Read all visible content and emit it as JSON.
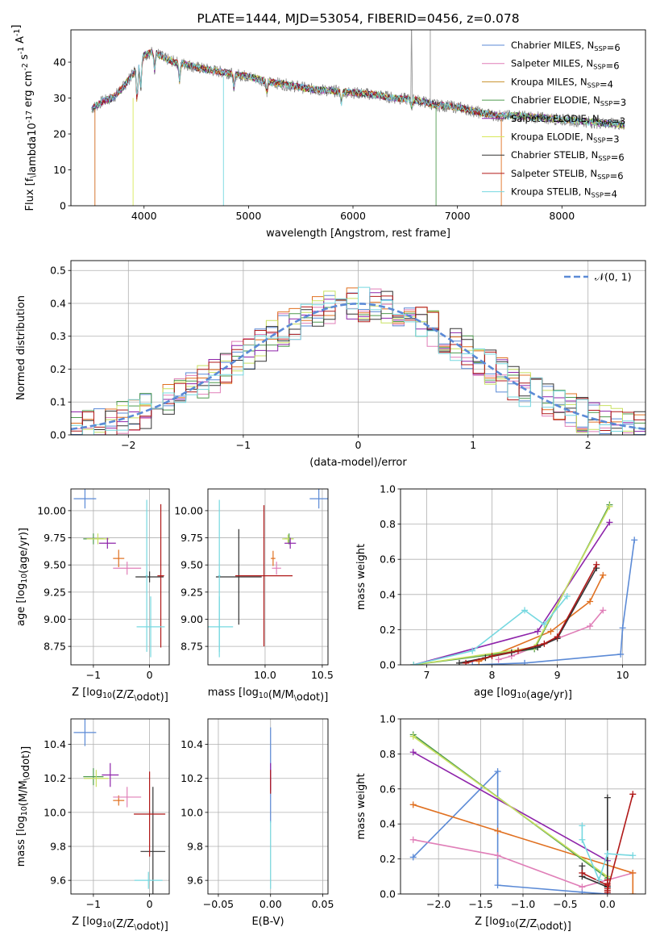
{
  "chart_data": [
    {
      "id": "spectrum",
      "type": "line",
      "title": "PLATE=1444, MJD=53054, FIBERID=0456, z=0.078",
      "xlabel": "wavelength [Angstrom, rest frame]",
      "ylabel": "Flux [f$_\\lambda$10$^{-17}$ erg cm$^{-2}$ s$^{-1}$ A$^{-1}$]",
      "xlim": [
        3300,
        8800
      ],
      "ylim": [
        0,
        49
      ],
      "xticks": [
        4000,
        5000,
        6000,
        7000,
        8000
      ],
      "yticks": [
        0,
        10,
        20,
        30,
        40
      ],
      "grid": false,
      "legend_position": "top-right",
      "observed_spectrum_color": "#808080",
      "continuum": {
        "x": [
          3500,
          3600,
          3700,
          3800,
          3900,
          4000,
          4100,
          4200,
          4300,
          4400,
          4500,
          4600,
          4800,
          5000,
          5200,
          5400,
          5600,
          5800,
          6000,
          6200,
          6400,
          6600,
          6800,
          7000,
          7200,
          7400,
          7600,
          7800,
          8000,
          8200,
          8400,
          8600
        ],
        "y": [
          27,
          29,
          30,
          33,
          37,
          42,
          43,
          41,
          40,
          39.5,
          38.5,
          38,
          37,
          36,
          34.5,
          33.5,
          32.5,
          32,
          31.5,
          31,
          30,
          29.5,
          28,
          27.5,
          26,
          25,
          25,
          24.5,
          24,
          23.5,
          23,
          22.5
        ]
      },
      "series": [
        {
          "label": "Chabrier MILES, N$_{SSP}$=6",
          "color": "#5b8ad6"
        },
        {
          "label": "Salpeter MILES, N$_{SSP}$=6",
          "color": "#e07fb8"
        },
        {
          "label": "Kroupa MILES, N$_{SSP}$=4",
          "color": "#c8902a"
        },
        {
          "label": "Chabrier ELODIE, N$_{SSP}$=3",
          "color": "#4f9a4f"
        },
        {
          "label": "Salpeter ELODIE, N$_{SSP}$=3",
          "color": "#8e24aa"
        },
        {
          "label": "Kroupa ELODIE, N$_{SSP}$=3",
          "color": "#d8e85a"
        },
        {
          "label": "Chabrier STELIB, N$_{SSP}$=6",
          "color": "#333333"
        },
        {
          "label": "Salpeter STELIB, N$_{SSP}$=6",
          "color": "#b01818"
        },
        {
          "label": "Kroupa STELIB, N$_{SSP}$=4",
          "color": "#76d8e0"
        }
      ]
    },
    {
      "id": "residuals",
      "type": "line",
      "xlabel": "(data-model)/error",
      "ylabel": "Normed distribution",
      "xlim": [
        -2.5,
        2.5
      ],
      "ylim": [
        0,
        0.53
      ],
      "xticks": [
        -2,
        -1,
        0,
        1,
        2
      ],
      "yticks": [
        0.0,
        0.1,
        0.2,
        0.3,
        0.4,
        0.5
      ],
      "grid": true,
      "legend_position": "top-right",
      "gaussian": {
        "label": "𝒩(0, 1)",
        "color": "#5b8ad6",
        "mean": 0,
        "sigma": 1
      },
      "histogram_colors": [
        "#5b8ad6",
        "#e07fb8",
        "#e07020",
        "#4f9a4f",
        "#8e24aa",
        "#c8e060",
        "#333333",
        "#b01818",
        "#76d8e0"
      ]
    },
    {
      "id": "age_vs_Z",
      "type": "scatter",
      "xlabel": "Z [log$_{10}$(Z/Z$_\\odot$)]",
      "ylabel": "age  [log$_{10}$(age/yr)]",
      "xlim": [
        -1.4,
        0.35
      ],
      "ylim": [
        8.58,
        10.2
      ],
      "xticks": [
        -1,
        0
      ],
      "yticks": [
        8.75,
        9.0,
        9.25,
        9.5,
        9.75,
        10.0
      ],
      "grid": true,
      "points": [
        {
          "x": -1.15,
          "y": 10.11,
          "xerr": 0.2,
          "yerr": 0.09,
          "color": "#5b8ad6"
        },
        {
          "x": -1.0,
          "y": 9.74,
          "xerr": 0.18,
          "yerr": 0.05,
          "color": "#4f9a4f"
        },
        {
          "x": -0.92,
          "y": 9.74,
          "xerr": 0.2,
          "yerr": 0.05,
          "color": "#c8e060"
        },
        {
          "x": -0.75,
          "y": 9.7,
          "xerr": 0.15,
          "yerr": 0.05,
          "color": "#8e24aa"
        },
        {
          "x": -0.55,
          "y": 9.56,
          "xerr": 0.1,
          "yerr": 0.08,
          "color": "#e07020"
        },
        {
          "x": -0.4,
          "y": 9.47,
          "xerr": 0.25,
          "yerr": 0.06,
          "color": "#e07fb8"
        },
        {
          "x": 0.0,
          "y": 9.39,
          "xerr": 0.25,
          "yerr": 0.05,
          "color": "#333333"
        },
        {
          "x": 0.2,
          "y": 9.4,
          "xerr": 0.06,
          "yerr": 0.66,
          "color": "#b01818"
        },
        {
          "x": 0.02,
          "y": 8.93,
          "xerr": 0.25,
          "yerr": 0.28,
          "color": "#76d8e0"
        },
        {
          "x": -0.05,
          "y": 9.4,
          "xerr": 0.02,
          "yerr": 0.7,
          "color": "#76d8e0"
        }
      ]
    },
    {
      "id": "age_vs_mass",
      "type": "scatter",
      "xlabel": "mass [log$_{10}$(M/M$_\\odot$)]",
      "ylabel": "",
      "xlim": [
        9.5,
        10.55
      ],
      "ylim": [
        8.58,
        10.2
      ],
      "xticks": [
        10.0,
        10.5
      ],
      "yticks": [
        8.75,
        9.0,
        9.25,
        9.5,
        9.75,
        10.0
      ],
      "grid": true,
      "points": [
        {
          "x": 10.47,
          "y": 10.11,
          "xerr": 0.08,
          "yerr": 0.09,
          "color": "#5b8ad6"
        },
        {
          "x": 10.21,
          "y": 9.74,
          "xerr": 0.04,
          "yerr": 0.05,
          "color": "#4f9a4f"
        },
        {
          "x": 10.2,
          "y": 9.74,
          "xerr": 0.05,
          "yerr": 0.04,
          "color": "#c8e060"
        },
        {
          "x": 10.22,
          "y": 9.7,
          "xerr": 0.05,
          "yerr": 0.05,
          "color": "#8e24aa"
        },
        {
          "x": 10.07,
          "y": 9.56,
          "xerr": 0.02,
          "yerr": 0.07,
          "color": "#e07020"
        },
        {
          "x": 10.1,
          "y": 9.47,
          "xerr": 0.04,
          "yerr": 0.06,
          "color": "#e07fb8"
        },
        {
          "x": 9.77,
          "y": 9.39,
          "xerr": 0.2,
          "yerr": 0.44,
          "color": "#333333"
        },
        {
          "x": 9.99,
          "y": 9.4,
          "xerr": 0.25,
          "yerr": 0.65,
          "color": "#b01818"
        },
        {
          "x": 9.6,
          "y": 8.93,
          "xerr": 0.12,
          "yerr": 0.28,
          "color": "#76d8e0"
        },
        {
          "x": 9.6,
          "y": 9.4,
          "xerr": 0.01,
          "yerr": 0.7,
          "color": "#76d8e0"
        }
      ]
    },
    {
      "id": "weight_vs_age",
      "type": "line",
      "xlabel": "age  [log$_{10}$(age/yr)]",
      "ylabel": "mass weight",
      "xlim": [
        6.6,
        10.35
      ],
      "ylim": [
        0,
        1.0
      ],
      "xticks": [
        7,
        8,
        9,
        10
      ],
      "yticks": [
        0.0,
        0.2,
        0.4,
        0.6,
        0.8,
        1.0
      ],
      "grid": true,
      "series": [
        {
          "color": "#5b8ad6",
          "x": [
            7.7,
            8.5,
            9.97,
            10.0,
            10.18
          ],
          "y": [
            0.0,
            0.01,
            0.06,
            0.21,
            0.71
          ]
        },
        {
          "color": "#e07fb8",
          "x": [
            8.1,
            8.3,
            9.5,
            9.7
          ],
          "y": [
            0.03,
            0.05,
            0.22,
            0.31
          ]
        },
        {
          "color": "#e07020",
          "x": [
            7.8,
            8.9,
            9.5,
            9.7
          ],
          "y": [
            0.02,
            0.19,
            0.36,
            0.51
          ]
        },
        {
          "color": "#4f9a4f",
          "x": [
            6.8,
            8.65,
            9.8
          ],
          "y": [
            0.0,
            0.09,
            0.91
          ]
        },
        {
          "color": "#8e24aa",
          "x": [
            6.8,
            8.7,
            9.8
          ],
          "y": [
            0.0,
            0.19,
            0.81
          ]
        },
        {
          "color": "#c8e060",
          "x": [
            6.8,
            8.65,
            9.8
          ],
          "y": [
            0.0,
            0.1,
            0.9
          ]
        },
        {
          "color": "#333333",
          "x": [
            7.5,
            7.9,
            8.3,
            8.7,
            9.0,
            9.6
          ],
          "y": [
            0.01,
            0.04,
            0.07,
            0.1,
            0.15,
            0.55
          ]
        },
        {
          "color": "#b01818",
          "x": [
            7.6,
            8.0,
            8.4,
            8.8,
            9.0,
            9.6
          ],
          "y": [
            0.01,
            0.05,
            0.08,
            0.12,
            0.16,
            0.57
          ]
        },
        {
          "color": "#76d8e0",
          "x": [
            6.8,
            7.7,
            8.5,
            8.8,
            9.15
          ],
          "y": [
            0.0,
            0.08,
            0.31,
            0.23,
            0.39
          ]
        }
      ]
    },
    {
      "id": "mass_vs_Z",
      "type": "scatter",
      "xlabel": "Z [log$_{10}$(Z/Z$_\\odot$)]",
      "ylabel": "mass [log$_{10}$(M/M$_\\odot$)]",
      "xlim": [
        -1.4,
        0.35
      ],
      "ylim": [
        9.52,
        10.55
      ],
      "xticks": [
        -1,
        0
      ],
      "yticks": [
        9.6,
        9.8,
        10.0,
        10.2,
        10.4
      ],
      "grid": true,
      "points": [
        {
          "x": -1.15,
          "y": 10.47,
          "xerr": 0.2,
          "yerr": 0.08,
          "color": "#5b8ad6"
        },
        {
          "x": -1.0,
          "y": 10.21,
          "xerr": 0.18,
          "yerr": 0.05,
          "color": "#4f9a4f"
        },
        {
          "x": -0.95,
          "y": 10.2,
          "xerr": 0.22,
          "yerr": 0.05,
          "color": "#c8e060"
        },
        {
          "x": -0.7,
          "y": 10.22,
          "xerr": 0.15,
          "yerr": 0.07,
          "color": "#8e24aa"
        },
        {
          "x": -0.55,
          "y": 10.07,
          "xerr": 0.1,
          "yerr": 0.03,
          "color": "#e07020"
        },
        {
          "x": -0.4,
          "y": 10.09,
          "xerr": 0.25,
          "yerr": 0.06,
          "color": "#e07fb8"
        },
        {
          "x": 0.06,
          "y": 9.77,
          "xerr": 0.22,
          "yerr": 0.38,
          "color": "#333333"
        },
        {
          "x": 0.0,
          "y": 9.99,
          "xerr": 0.28,
          "yerr": 0.25,
          "color": "#b01818"
        },
        {
          "x": -0.02,
          "y": 9.6,
          "xerr": 0.25,
          "yerr": 0.05,
          "color": "#76d8e0"
        }
      ]
    },
    {
      "id": "mass_vs_EBV",
      "type": "scatter",
      "xlabel": "E(B-V)",
      "ylabel": "",
      "xlim": [
        -0.06,
        0.055
      ],
      "ylim": [
        9.52,
        10.55
      ],
      "xticks": [
        -0.05,
        0.0,
        0.05
      ],
      "yticks": [
        9.6,
        9.8,
        10.0,
        10.2,
        10.4
      ],
      "grid": true,
      "points": [
        {
          "x": 0.0,
          "y": 10.22,
          "xerr": 0.0,
          "yerr": 0.28,
          "color": "#5b8ad6"
        },
        {
          "x": 0.0,
          "y": 10.21,
          "xerr": 0.0,
          "yerr": 0.08,
          "color": "#8e24aa"
        },
        {
          "x": 0.0,
          "y": 10.18,
          "xerr": 0.0,
          "yerr": 0.07,
          "color": "#b01818"
        },
        {
          "x": 0.0,
          "y": 9.75,
          "xerr": 0.0,
          "yerr": 0.2,
          "color": "#76d8e0"
        }
      ]
    },
    {
      "id": "weight_vs_Z",
      "type": "line",
      "xlabel": "Z [log$_{10}$(Z/Z$_\\odot$)]",
      "ylabel": "mass weight",
      "xlim": [
        -2.45,
        0.45
      ],
      "ylim": [
        0,
        1.0
      ],
      "xticks": [
        -2.0,
        -1.5,
        -1.0,
        -0.5,
        0.0
      ],
      "yticks": [
        0.0,
        0.2,
        0.4,
        0.6,
        0.8,
        1.0
      ],
      "grid": true,
      "series": [
        {
          "color": "#5b8ad6",
          "x": [
            -2.3,
            -1.3,
            -1.3,
            -0.3,
            0.0
          ],
          "y": [
            0.21,
            0.7,
            0.05,
            0.01,
            0.0
          ]
        },
        {
          "color": "#e07fb8",
          "x": [
            -2.3,
            -1.3,
            -0.3,
            0.3
          ],
          "y": [
            0.31,
            0.22,
            0.04,
            0.12
          ]
        },
        {
          "color": "#e07020",
          "x": [
            -2.3,
            -1.3,
            0.3,
            0.3
          ],
          "y": [
            0.51,
            0.36,
            0.12,
            0.0
          ]
        },
        {
          "color": "#4f9a4f",
          "x": [
            -2.3,
            0.0,
            0.0
          ],
          "y": [
            0.91,
            0.09,
            0.0
          ]
        },
        {
          "color": "#8e24aa",
          "x": [
            -2.3,
            0.0,
            0.0
          ],
          "y": [
            0.81,
            0.19,
            0.0
          ]
        },
        {
          "color": "#c8e060",
          "x": [
            -2.3,
            0.0
          ],
          "y": [
            0.9,
            0.1
          ]
        },
        {
          "color": "#333333",
          "x": [
            -0.3,
            -0.3,
            0.0,
            0.0,
            0.0
          ],
          "y": [
            0.16,
            0.1,
            0.04,
            0.55,
            0.04
          ]
        },
        {
          "color": "#b01818",
          "x": [
            -0.3,
            0.0,
            0.0,
            0.0,
            0.0,
            0.0,
            0.0,
            0.3
          ],
          "y": [
            0.12,
            0.05,
            0.01,
            0.03,
            0.06,
            0.08,
            0.02,
            0.57
          ]
        },
        {
          "color": "#76d8e0",
          "x": [
            -0.3,
            -0.3,
            -0.1,
            0.0,
            0.3
          ],
          "y": [
            0.39,
            0.31,
            0.08,
            0.23,
            0.22
          ]
        }
      ]
    }
  ]
}
